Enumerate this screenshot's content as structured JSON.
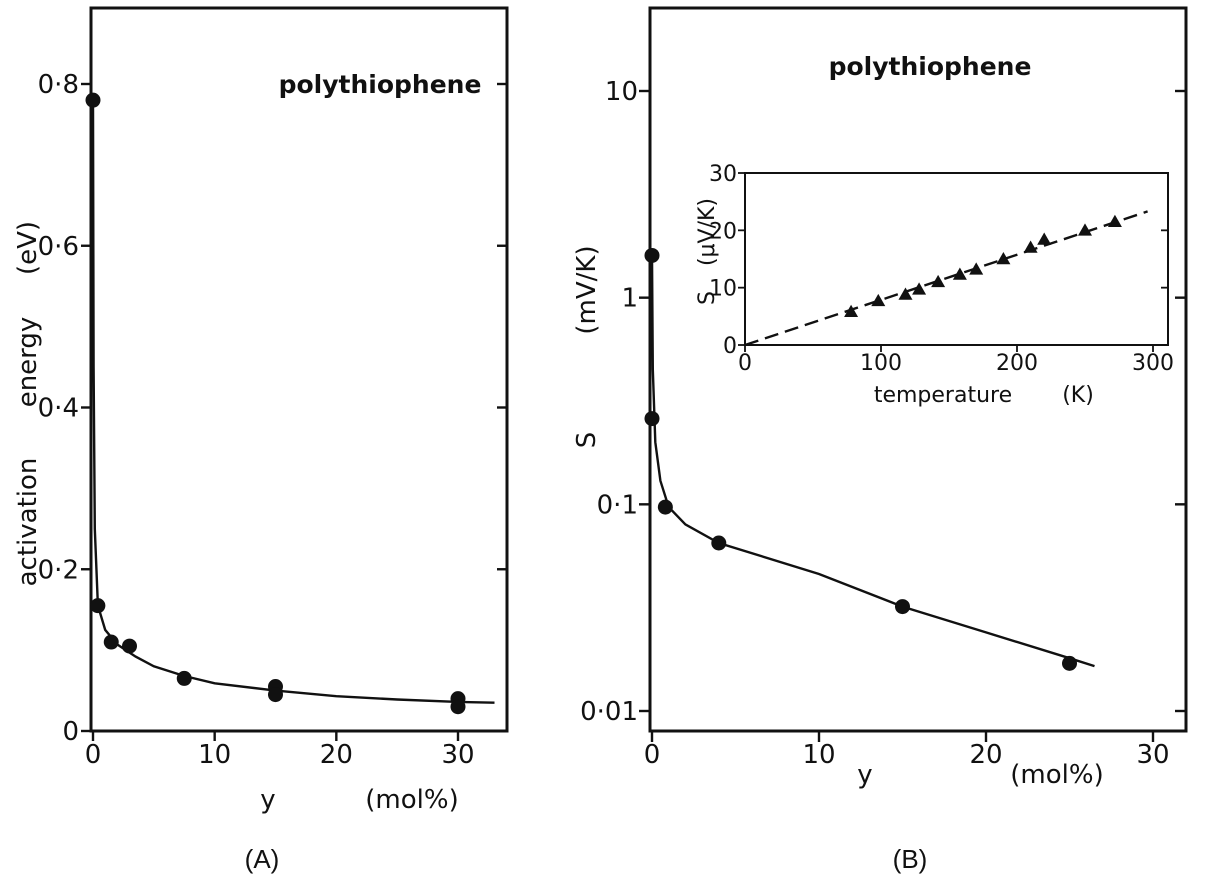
{
  "chart_data": [
    {
      "id": "A",
      "type": "scatter",
      "title": "polythiophene",
      "caption": "(A)",
      "xlabel": "y",
      "xunit": "(mol%)",
      "ylabel_parts": [
        "activation",
        "energy",
        "(eV)"
      ],
      "xlim": [
        0,
        33
      ],
      "ylim": [
        0,
        0.88
      ],
      "xticks": [
        0,
        10,
        20,
        30
      ],
      "xtick_labels": [
        "0",
        "10",
        "20",
        "30"
      ],
      "yticks": [
        0,
        0.2,
        0.4,
        0.6,
        0.8
      ],
      "ytick_labels": [
        "0",
        "0.2",
        "0.4",
        "0.6",
        "0.8"
      ],
      "points": [
        {
          "x": 0,
          "y": 0.78
        },
        {
          "x": 0.4,
          "y": 0.155
        },
        {
          "x": 1.5,
          "y": 0.11
        },
        {
          "x": 3,
          "y": 0.105
        },
        {
          "x": 7.5,
          "y": 0.065
        },
        {
          "x": 15,
          "y": 0.055
        },
        {
          "x": 15,
          "y": 0.045
        },
        {
          "x": 30,
          "y": 0.04
        },
        {
          "x": 30,
          "y": 0.03
        }
      ],
      "fit_curve": [
        [
          0,
          0.78
        ],
        [
          0.05,
          0.45
        ],
        [
          0.15,
          0.25
        ],
        [
          0.4,
          0.155
        ],
        [
          1,
          0.125
        ],
        [
          2,
          0.107
        ],
        [
          3.5,
          0.092
        ],
        [
          5,
          0.08
        ],
        [
          7.5,
          0.068
        ],
        [
          10,
          0.059
        ],
        [
          15,
          0.05
        ],
        [
          20,
          0.043
        ],
        [
          25,
          0.039
        ],
        [
          30,
          0.036
        ],
        [
          33,
          0.035
        ]
      ]
    },
    {
      "id": "B",
      "type": "scatter",
      "title": "polythiophene",
      "caption": "(B)",
      "xlabel": "y",
      "xunit": "(mol%)",
      "ylabel": "S",
      "yunit": "(mV/K)",
      "yscale": "log",
      "xlim": [
        0,
        32
      ],
      "ylim": [
        0.01,
        20
      ],
      "xticks": [
        0,
        10,
        20,
        30
      ],
      "xtick_labels": [
        "0",
        "10",
        "20",
        "30"
      ],
      "yticks": [
        0.01,
        0.1,
        1,
        10
      ],
      "ytick_labels": [
        "0.01",
        "0.1",
        "1",
        "10"
      ],
      "points": [
        {
          "x": 0,
          "y": 1.6
        },
        {
          "x": 0,
          "y": 0.26
        },
        {
          "x": 0.8,
          "y": 0.097
        },
        {
          "x": 4,
          "y": 0.065
        },
        {
          "x": 15,
          "y": 0.032
        },
        {
          "x": 25,
          "y": 0.017
        }
      ],
      "fit_curve": [
        [
          0,
          1.6
        ],
        [
          0.05,
          0.45
        ],
        [
          0.2,
          0.2
        ],
        [
          0.5,
          0.13
        ],
        [
          1,
          0.097
        ],
        [
          2,
          0.08
        ],
        [
          4,
          0.065
        ],
        [
          10,
          0.046
        ],
        [
          15,
          0.032
        ],
        [
          20,
          0.024
        ],
        [
          25,
          0.018
        ],
        [
          26.5,
          0.0165
        ]
      ],
      "inset": {
        "type": "scatter",
        "xlabel": "temperature",
        "xunit": "(K)",
        "ylabel": "S",
        "yunit": "(μV/K)",
        "xlim": [
          0,
          300
        ],
        "ylim": [
          0,
          30
        ],
        "xticks": [
          0,
          100,
          200,
          300
        ],
        "xtick_labels": [
          "0",
          "100",
          "200",
          "300"
        ],
        "yticks": [
          0,
          10,
          20,
          30
        ],
        "ytick_labels": [
          "0",
          "10",
          "20",
          "30"
        ],
        "points": [
          {
            "x": 78,
            "y": 5.8
          },
          {
            "x": 98,
            "y": 7.7
          },
          {
            "x": 118,
            "y": 8.8
          },
          {
            "x": 128,
            "y": 9.7
          },
          {
            "x": 142,
            "y": 11.0
          },
          {
            "x": 158,
            "y": 12.3
          },
          {
            "x": 170,
            "y": 13.2
          },
          {
            "x": 190,
            "y": 15.0
          },
          {
            "x": 210,
            "y": 17.0
          },
          {
            "x": 220,
            "y": 18.4
          },
          {
            "x": 250,
            "y": 20.0
          },
          {
            "x": 272,
            "y": 21.5
          }
        ],
        "fit_line": [
          [
            0,
            0
          ],
          [
            296,
            23.3
          ]
        ]
      }
    }
  ]
}
